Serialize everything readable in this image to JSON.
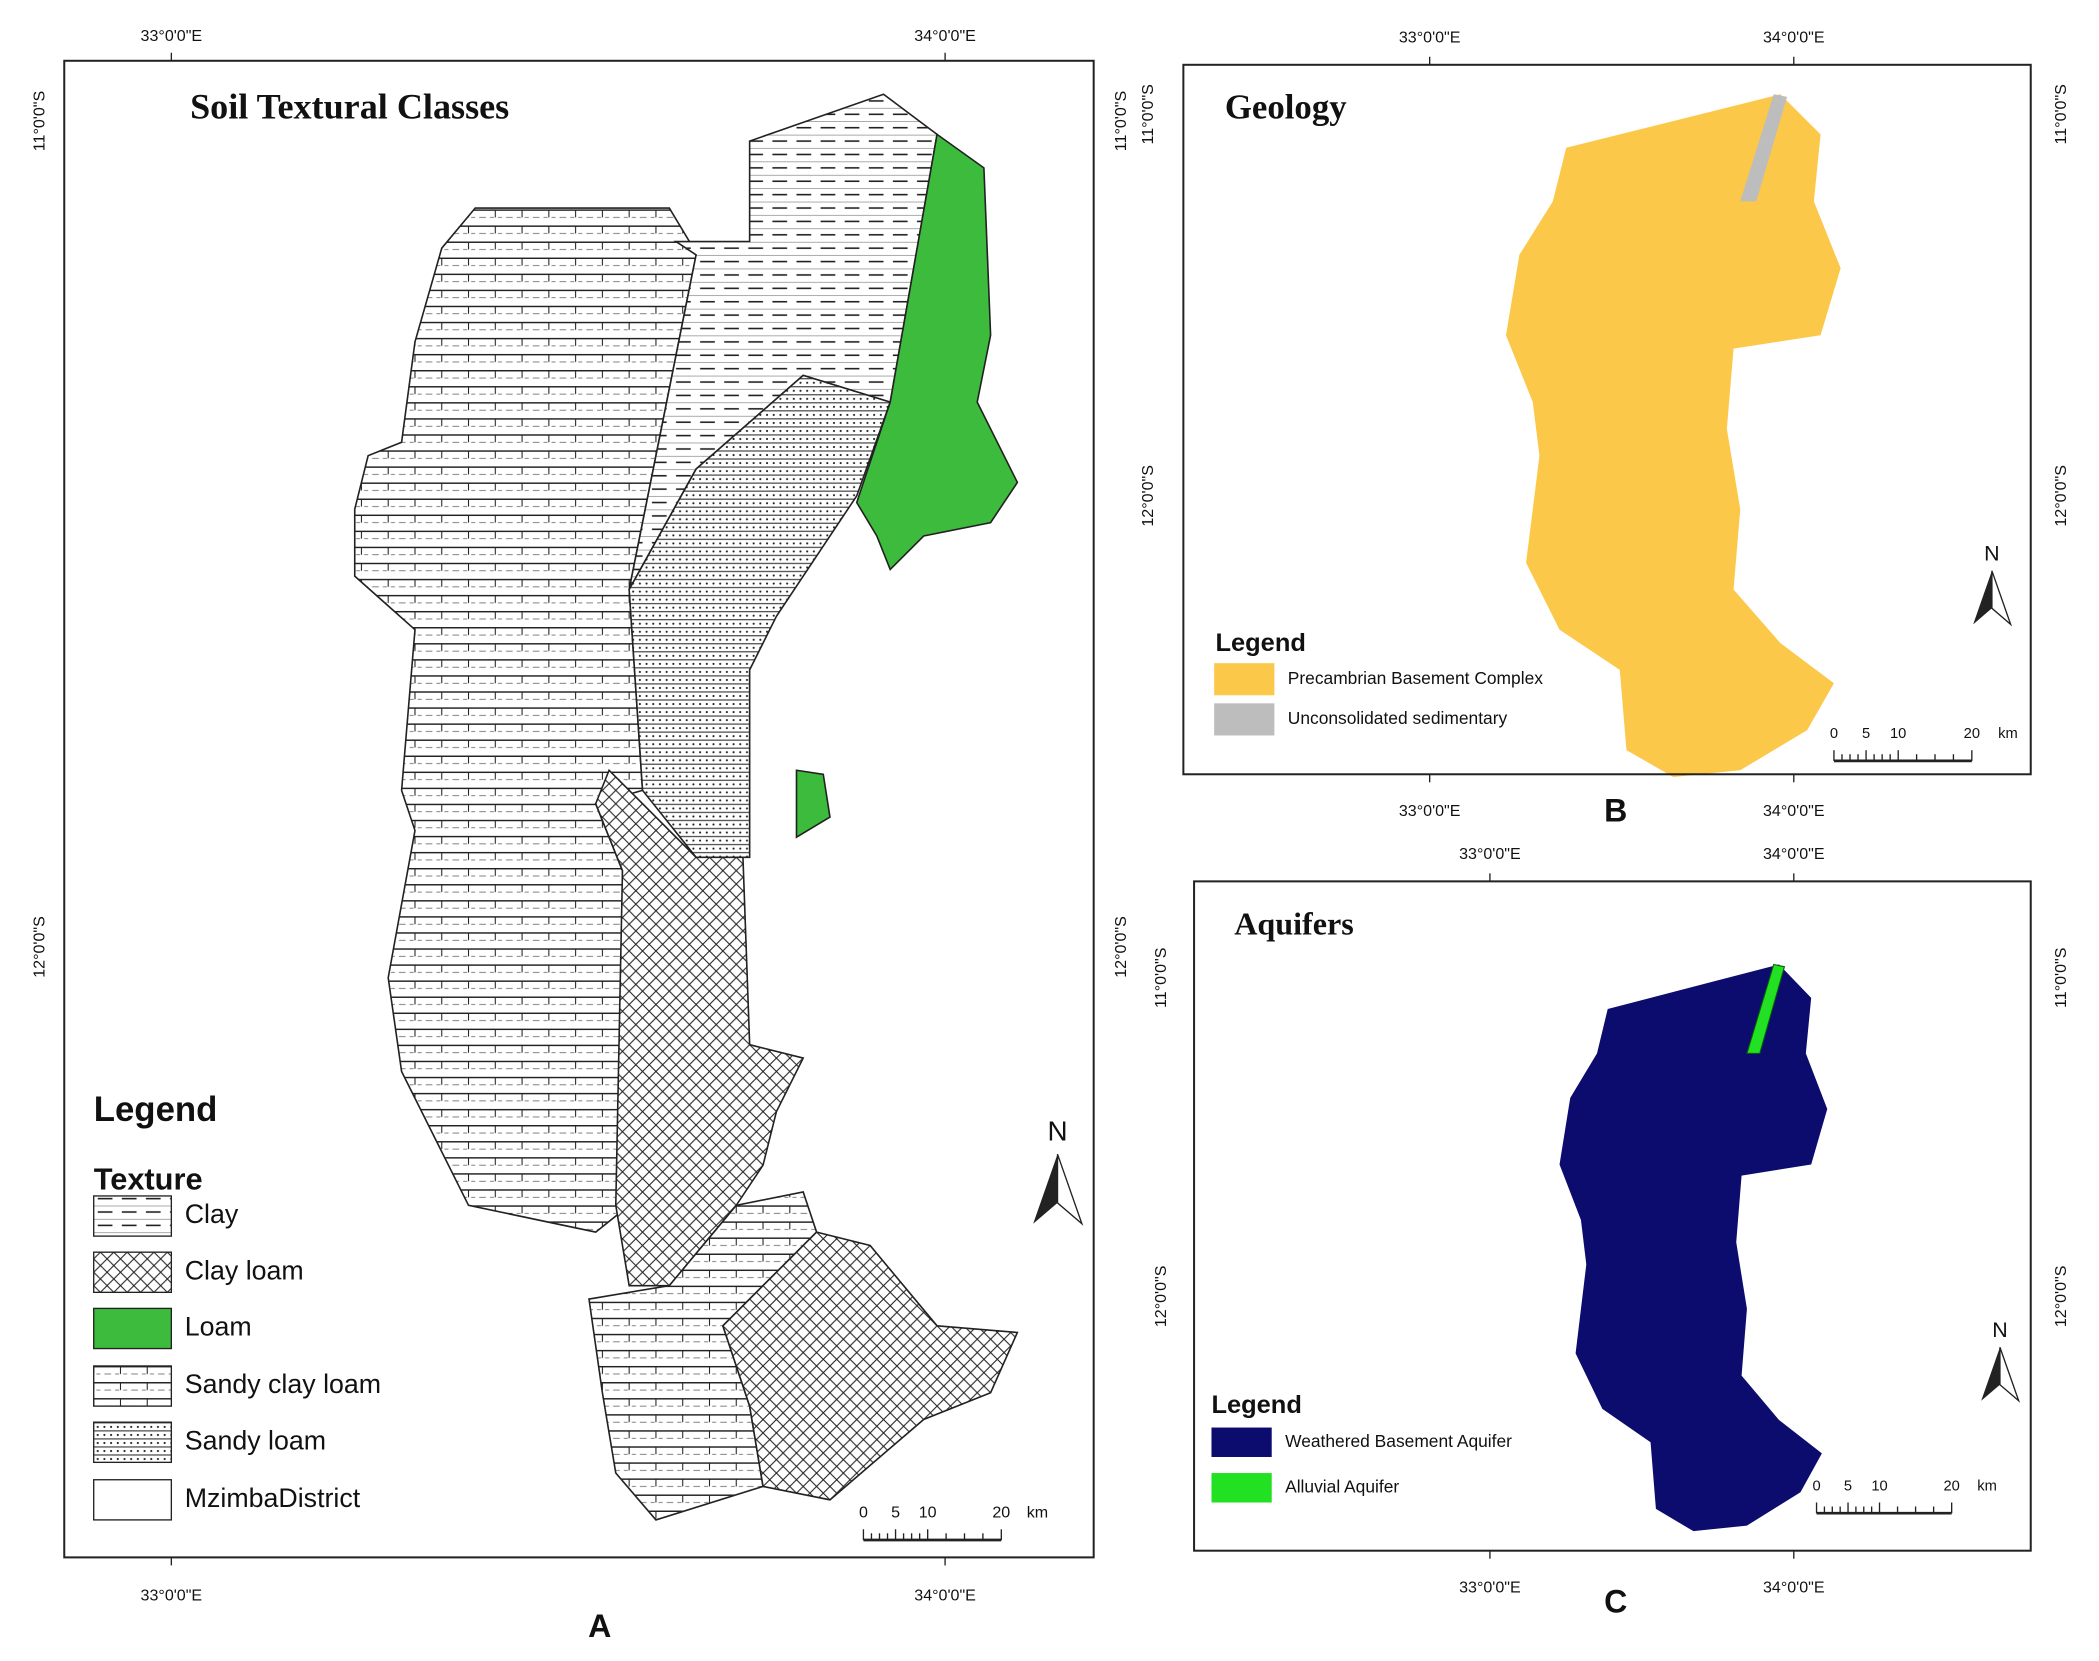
{
  "panels": [
    {
      "letter": "A",
      "title": "Soil Textural Classes",
      "legend_title": "Legend",
      "legend_subtitle": "Texture",
      "legend": [
        "Clay",
        "Clay loam",
        "Loam",
        "Sandy clay loam",
        "Sandy loam",
        "MzimbaDistrict"
      ]
    },
    {
      "letter": "B",
      "title": "Geology",
      "legend_title": "Legend",
      "legend": [
        "Precambrian Basement Complex",
        "Unconsolidated sedimentary"
      ]
    },
    {
      "letter": "C",
      "title": "Aquifers",
      "legend_title": "Legend",
      "legend": [
        "Weathered Basement Aquifer",
        "Alluvial Aquifer"
      ]
    }
  ],
  "lon_labels": [
    "33°0'0\"E",
    "34°0'0\"E"
  ],
  "lat_labels": [
    "11°0'0\"S",
    "12°0'0\"S"
  ],
  "north": "N",
  "scale_bar": [
    "0",
    "5",
    "10",
    "20",
    "km"
  ]
}
